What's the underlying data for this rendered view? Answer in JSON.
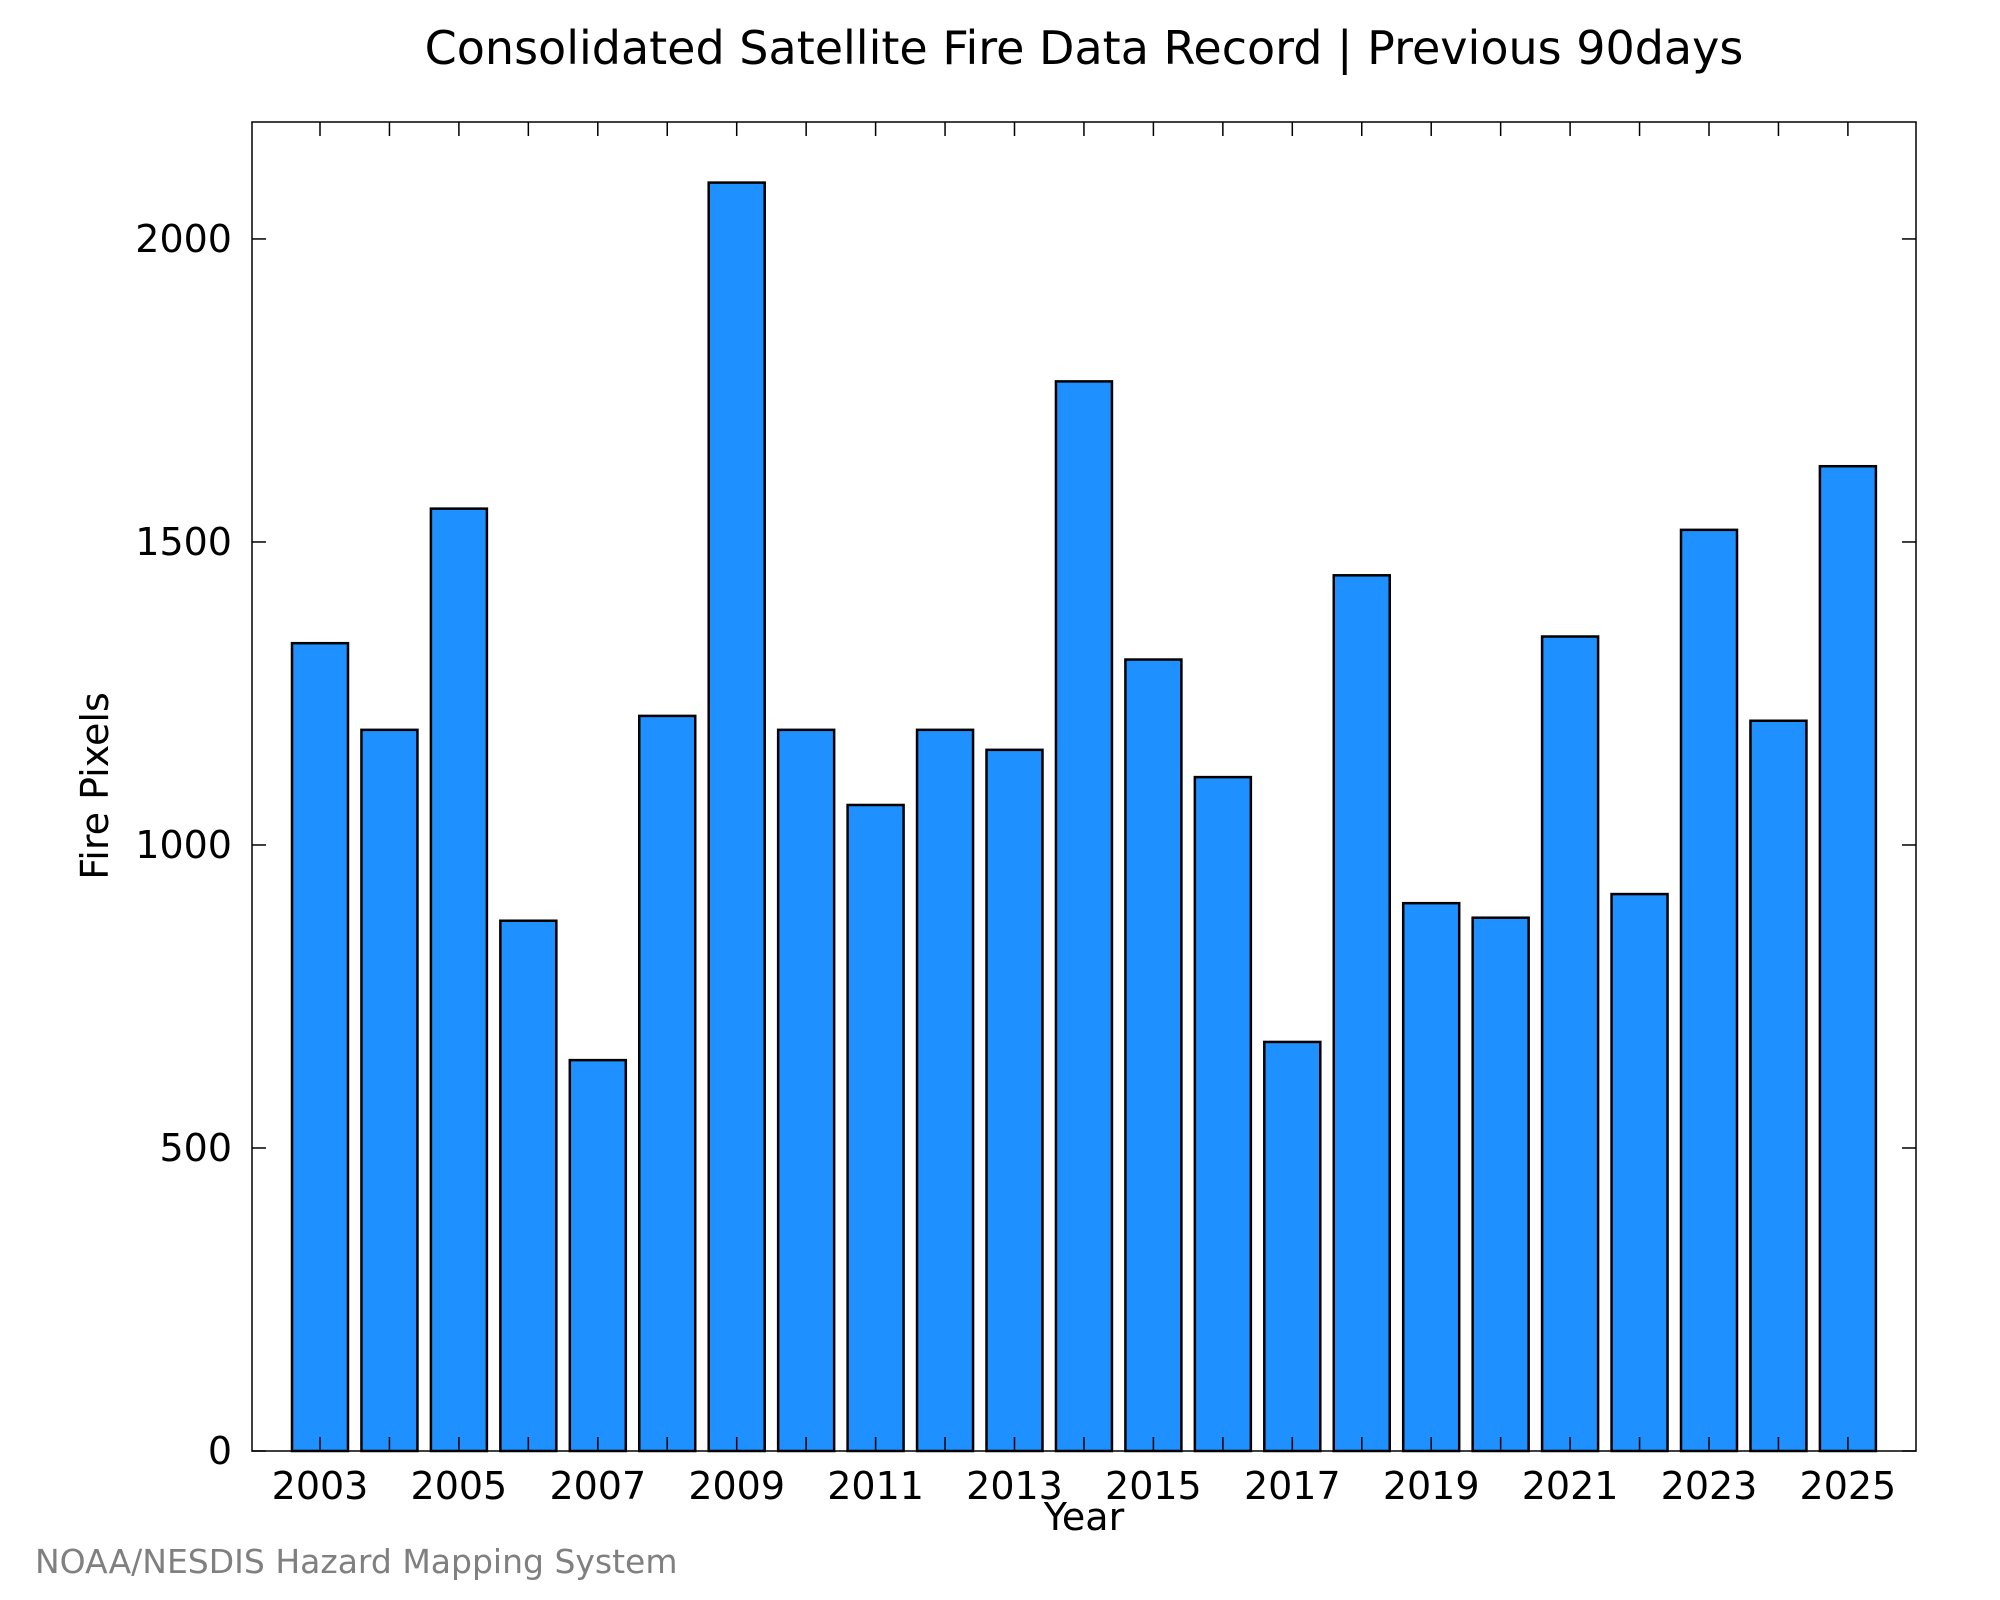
{
  "chart_data": {
    "type": "bar",
    "title": "Consolidated Satellite Fire Data Record | Previous 90days",
    "xlabel": "Year",
    "ylabel": "Fire Pixels",
    "categories": [
      "2003",
      "2004",
      "2005",
      "2006",
      "2007",
      "2008",
      "2009",
      "2010",
      "2011",
      "2012",
      "2013",
      "2014",
      "2015",
      "2016",
      "2017",
      "2018",
      "2019",
      "2020",
      "2021",
      "2022",
      "2023",
      "2024",
      "2025"
    ],
    "values": [
      1333,
      1190,
      1555,
      875,
      645,
      1213,
      2093,
      1190,
      1066,
      1190,
      1157,
      1765,
      1306,
      1112,
      675,
      1445,
      904,
      880,
      1344,
      919,
      1520,
      1205,
      1625
    ],
    "x_tick_labels": [
      "2003",
      "2005",
      "2007",
      "2009",
      "2011",
      "2013",
      "2015",
      "2017",
      "2019",
      "2021",
      "2023",
      "2025"
    ],
    "y_ticks": [
      "0",
      "500",
      "1000",
      "1500",
      "2000"
    ],
    "ylim": [
      0,
      2193
    ],
    "grid": false,
    "legend": "none",
    "bar_color": "#1e90ff",
    "edge_color": "#000000"
  },
  "footer": {
    "credit": "NOAA/NESDIS Hazard Mapping System"
  }
}
